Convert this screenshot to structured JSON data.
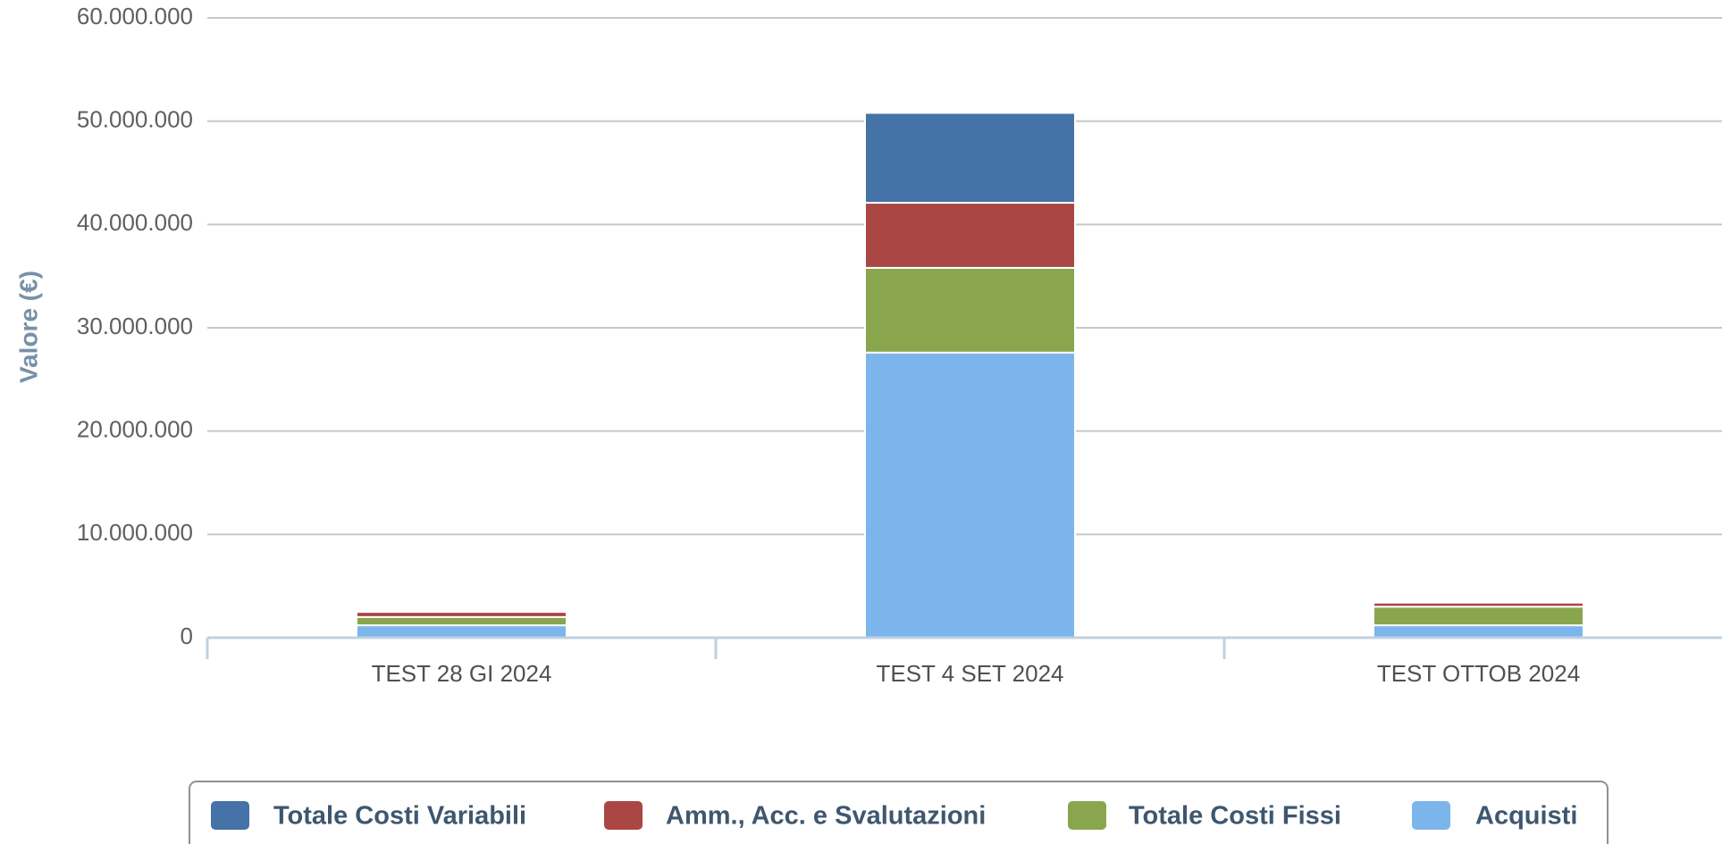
{
  "chart_data": {
    "type": "stacked-bar",
    "y_label": "Valore (€)",
    "categories": [
      "TEST 28 GI 2024",
      "TEST 4 SET 2024",
      "TEST OTTOB 2024"
    ],
    "series": [
      {
        "name": "Totale Costi Variabili",
        "color": "#4572a7",
        "values": [
          100000,
          8700000,
          100000
        ]
      },
      {
        "name": "Amm., Acc. e Svalutazioni",
        "color": "#aa4643",
        "values": [
          500000,
          6300000,
          400000
        ]
      },
      {
        "name": "Totale Costi Fissi",
        "color": "#89a54e",
        "values": [
          800000,
          8200000,
          1800000
        ]
      },
      {
        "name": "Acquisti",
        "color": "#7cb5ec",
        "values": [
          1200000,
          27600000,
          1200000
        ]
      }
    ],
    "ylim": [
      0,
      60000000
    ],
    "yticks": [
      0,
      {
        "value": 10000000,
        "label": "10.000.000"
      },
      {
        "value": 20000000,
        "label": "20.000.000"
      },
      {
        "value": 30000000,
        "label": "30.000.000"
      },
      {
        "value": 40000000,
        "label": "40.000.000"
      },
      {
        "value": 50000000,
        "label": "50.000.000"
      },
      {
        "value": 60000000,
        "label": "60.000.000"
      }
    ],
    "grid": true,
    "legend": "bottom"
  }
}
